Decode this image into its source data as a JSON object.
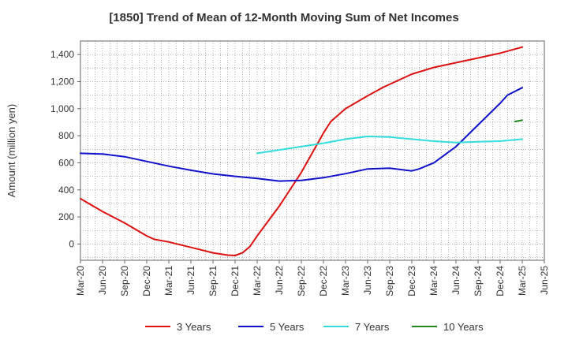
{
  "chart_data": {
    "type": "line",
    "title": "[1850]  Trend of Mean of 12-Month Moving Sum of Net Incomes",
    "ylabel": "Amount (million yen)",
    "xlabel": "",
    "x_ticks": [
      "Mar-20",
      "Jun-20",
      "Sep-20",
      "Dec-20",
      "Mar-21",
      "Jun-21",
      "Sep-21",
      "Dec-21",
      "Mar-22",
      "Jun-22",
      "Sep-22",
      "Dec-22",
      "Mar-23",
      "Jun-23",
      "Sep-23",
      "Dec-23",
      "Mar-24",
      "Jun-24",
      "Sep-24",
      "Dec-24",
      "Mar-25",
      "Jun-25"
    ],
    "y_ticks": [
      0,
      200,
      400,
      600,
      800,
      1000,
      1200,
      1400
    ],
    "y_tick_labels": [
      "0",
      "200",
      "400",
      "600",
      "800",
      "1,000",
      "1,200",
      "1,400"
    ],
    "ylim": [
      -120,
      1500
    ],
    "grid": true,
    "legend_position": "bottom",
    "series": [
      {
        "name": "3 Years",
        "color": "#dd1111",
        "x": [
          "Mar-20",
          "Jun-20",
          "Sep-20",
          "Dec-20",
          "Jan-21",
          "Mar-21",
          "Jun-21",
          "Sep-21",
          "Nov-21",
          "Dec-21",
          "Jan-22",
          "Feb-22",
          "Mar-22",
          "Jun-22",
          "Sep-22",
          "Dec-22",
          "Jan-23",
          "Mar-23",
          "Jun-23",
          "Aug-23",
          "Sep-23",
          "Dec-23",
          "Mar-24",
          "Jun-24",
          "Sep-24",
          "Dec-24",
          "Mar-25"
        ],
        "values": [
          335,
          240,
          155,
          60,
          35,
          15,
          -25,
          -65,
          -82,
          -85,
          -65,
          -20,
          60,
          280,
          530,
          820,
          905,
          1000,
          1095,
          1155,
          1180,
          1255,
          1305,
          1340,
          1375,
          1410,
          1455
        ]
      },
      {
        "name": "5 Years",
        "color": "#1111cc",
        "x": [
          "Mar-20",
          "Jun-20",
          "Sep-20",
          "Dec-20",
          "Mar-21",
          "Jun-21",
          "Sep-21",
          "Dec-21",
          "Mar-22",
          "Jun-22",
          "Sep-22",
          "Dec-22",
          "Mar-23",
          "Jun-23",
          "Sep-23",
          "Dec-23",
          "Jan-24",
          "Mar-24",
          "Jun-24",
          "Sep-24",
          "Dec-24",
          "Jan-25",
          "Mar-25"
        ],
        "values": [
          670,
          665,
          645,
          610,
          575,
          545,
          518,
          500,
          485,
          465,
          470,
          490,
          520,
          555,
          560,
          540,
          555,
          600,
          720,
          880,
          1040,
          1100,
          1155
        ]
      },
      {
        "name": "7 Years",
        "color": "#33dddd",
        "x": [
          "Mar-22",
          "Jun-22",
          "Sep-22",
          "Dec-22",
          "Mar-23",
          "Jun-23",
          "Sep-23",
          "Dec-23",
          "Mar-24",
          "Jun-24",
          "Sep-24",
          "Dec-24",
          "Mar-25"
        ],
        "values": [
          670,
          695,
          720,
          745,
          775,
          795,
          790,
          775,
          760,
          750,
          755,
          760,
          775
        ]
      },
      {
        "name": "10 Years",
        "color": "#228822",
        "x": [
          "Feb-25",
          "Mar-25"
        ],
        "values": [
          905,
          915
        ]
      }
    ]
  }
}
